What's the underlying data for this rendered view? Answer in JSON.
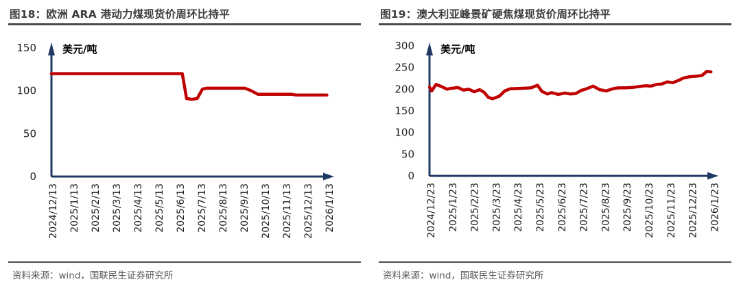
{
  "panels": [
    {
      "title": "图18：欧洲 ARA 港动力煤现货价周环比持平",
      "source": "资料来源：wind，国联民生证券研究所"
    },
    {
      "title": "图19：澳大利亚峰景矿硬焦煤现货价周环比持平",
      "source": "资料来源：wind，国联民生证券研究所"
    }
  ],
  "chart_data": [
    {
      "type": "line",
      "title": "图18：欧洲 ARA 港动力煤现货价周环比持平",
      "ylabel": "美元/吨",
      "ylim": [
        0,
        150
      ],
      "yticks": [
        0,
        50,
        100,
        150
      ],
      "x_labels": [
        "2024/12/13",
        "2025/1/13",
        "2025/2/13",
        "2025/3/13",
        "2025/4/13",
        "2025/5/13",
        "2025/6/13",
        "2025/7/13",
        "2025/8/13",
        "2025/9/13",
        "2025/10/13",
        "2025/11/13",
        "2025/12/13",
        "2026/1/13"
      ],
      "grid": false,
      "legend": "none",
      "axis_color": "#1f3864",
      "series": [
        {
          "color": "#c00000",
          "points": [
            [
              0,
              120
            ],
            [
              1,
              120
            ],
            [
              2,
              120
            ],
            [
              3,
              120
            ],
            [
              4,
              120
            ],
            [
              5,
              120
            ],
            [
              6,
              120
            ],
            [
              6.15,
              120
            ],
            [
              6.35,
              91
            ],
            [
              6.6,
              90
            ],
            [
              6.85,
              91
            ],
            [
              7.1,
              102
            ],
            [
              7.3,
              103
            ],
            [
              8,
              103
            ],
            [
              8.6,
              103
            ],
            [
              9.1,
              103
            ],
            [
              9.4,
              100
            ],
            [
              9.7,
              96
            ],
            [
              10.3,
              96
            ],
            [
              11.3,
              96
            ],
            [
              11.5,
              95
            ],
            [
              12.2,
              95
            ],
            [
              12.95,
              95
            ]
          ]
        }
      ]
    },
    {
      "type": "line",
      "title": "图19：澳大利亚峰景矿硬焦煤现货价周环比持平",
      "ylabel": "美元/吨",
      "ylim": [
        0,
        300
      ],
      "yticks": [
        0,
        50,
        100,
        150,
        200,
        250,
        300
      ],
      "x_labels": [
        "2024/12/23",
        "2025/1/23",
        "2025/2/23",
        "2025/3/23",
        "2025/4/23",
        "2025/5/23",
        "2025/6/23",
        "2025/7/23",
        "2025/8/23",
        "2025/9/23",
        "2025/10/23",
        "2025/11/23",
        "2025/12/23",
        "2026/1/23"
      ],
      "grid": false,
      "legend": "none",
      "axis_color": "#1f3864",
      "series": [
        {
          "color": "#c00000",
          "points": [
            [
              0,
              205
            ],
            [
              0.1,
              196
            ],
            [
              0.3,
              211
            ],
            [
              0.55,
              206
            ],
            [
              0.8,
              200
            ],
            [
              1.0,
              202
            ],
            [
              1.3,
              204
            ],
            [
              1.55,
              198
            ],
            [
              1.8,
              200
            ],
            [
              2.05,
              194
            ],
            [
              2.3,
              199
            ],
            [
              2.5,
              193
            ],
            [
              2.7,
              181
            ],
            [
              2.9,
              178
            ],
            [
              3.2,
              184
            ],
            [
              3.45,
              196
            ],
            [
              3.7,
              201
            ],
            [
              4.2,
              202
            ],
            [
              4.65,
              203
            ],
            [
              4.95,
              209
            ],
            [
              5.15,
              195
            ],
            [
              5.4,
              189
            ],
            [
              5.6,
              192
            ],
            [
              5.9,
              188
            ],
            [
              6.2,
              191
            ],
            [
              6.45,
              189
            ],
            [
              6.7,
              190
            ],
            [
              6.95,
              197
            ],
            [
              7.2,
              201
            ],
            [
              7.5,
              207
            ],
            [
              7.8,
              199
            ],
            [
              8.1,
              196
            ],
            [
              8.4,
              201
            ],
            [
              8.65,
              203
            ],
            [
              8.95,
              203
            ],
            [
              9.3,
              204
            ],
            [
              9.6,
              206
            ],
            [
              9.9,
              208
            ],
            [
              10.15,
              207
            ],
            [
              10.4,
              211
            ],
            [
              10.65,
              212
            ],
            [
              10.9,
              217
            ],
            [
              11.15,
              215
            ],
            [
              11.4,
              220
            ],
            [
              11.65,
              226
            ],
            [
              11.95,
              229
            ],
            [
              12.25,
              230
            ],
            [
              12.5,
              232
            ],
            [
              12.7,
              241
            ],
            [
              12.9,
              240
            ]
          ]
        }
      ]
    }
  ]
}
